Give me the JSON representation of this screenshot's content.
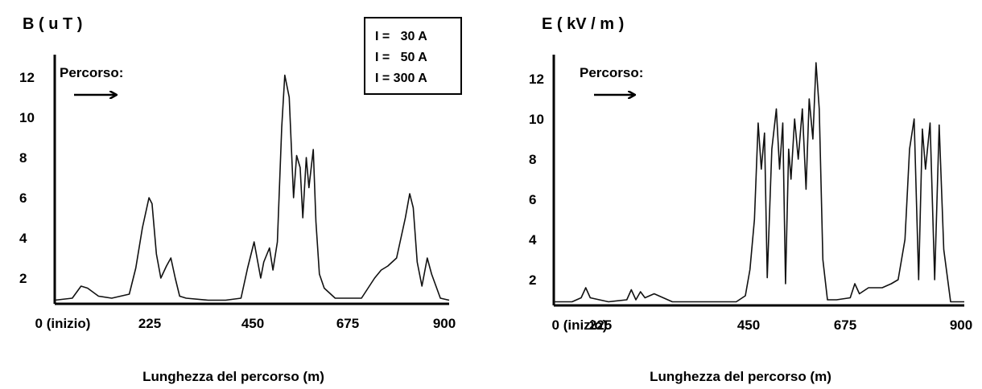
{
  "chart_data": [
    {
      "type": "line",
      "title": "B ( u T )",
      "xlabel": "Lunghezza del percorso (m)",
      "ylabel": "",
      "x_ticks": [
        "0 (inizio)",
        "225",
        "450",
        "675",
        "900"
      ],
      "y_ticks": [
        "2",
        "4",
        "6",
        "8",
        "10",
        "12"
      ],
      "xlim": [
        0,
        900
      ],
      "ylim": [
        0.8,
        12.5
      ],
      "annotation": "Percorso:",
      "legend": [
        "I =   30 A",
        "I =   50 A",
        "I = 300 A"
      ],
      "legend_position": "top-right",
      "grid": false,
      "series": [
        {
          "x": [
            0,
            40,
            60,
            75,
            100,
            130,
            170,
            185,
            200,
            215,
            222,
            232,
            242,
            255,
            265,
            275,
            285,
            300,
            350,
            390,
            425,
            440,
            455,
            470,
            477,
            490,
            498,
            508,
            518,
            525,
            535,
            545,
            552,
            560,
            566,
            574,
            580,
            590,
            596,
            604,
            615,
            640,
            670,
            700,
            730,
            745,
            760,
            780,
            800,
            810,
            818,
            827,
            838,
            850,
            860,
            880,
            900
          ],
          "y": [
            0.9,
            1.0,
            1.6,
            1.5,
            1.1,
            1.0,
            1.2,
            2.5,
            4.5,
            6.0,
            5.7,
            3.2,
            2.0,
            2.6,
            3.0,
            2.0,
            1.1,
            1.0,
            0.9,
            0.9,
            1.0,
            2.5,
            3.8,
            2.0,
            2.8,
            3.5,
            2.4,
            3.8,
            9.5,
            12.1,
            11.0,
            6.0,
            8.1,
            7.5,
            5.0,
            8.0,
            6.5,
            8.4,
            4.8,
            2.2,
            1.5,
            1.0,
            1.0,
            1.0,
            2.0,
            2.4,
            2.6,
            3.0,
            5.0,
            6.2,
            5.5,
            2.8,
            1.6,
            3.0,
            2.2,
            1.0,
            0.9
          ]
        }
      ]
    },
    {
      "type": "line",
      "title": "E ( kV / m )",
      "xlabel": "Lunghezza del percorso (m)",
      "ylabel": "",
      "x_ticks": [
        "0 (inizio)",
        "225",
        "450",
        "675",
        "900"
      ],
      "y_ticks": [
        "2",
        "4",
        "6",
        "8",
        "10",
        "12"
      ],
      "xlim": [
        0,
        900
      ],
      "ylim": [
        0.8,
        13
      ],
      "annotation": "Percorso:",
      "grid": false,
      "series": [
        {
          "x": [
            0,
            40,
            60,
            70,
            80,
            120,
            160,
            170,
            180,
            190,
            200,
            220,
            240,
            260,
            300,
            340,
            400,
            420,
            430,
            440,
            448,
            455,
            462,
            468,
            478,
            488,
            495,
            502,
            508,
            515,
            520,
            528,
            536,
            545,
            553,
            560,
            568,
            575,
            582,
            590,
            600,
            620,
            650,
            660,
            670,
            690,
            720,
            740,
            755,
            770,
            780,
            790,
            800,
            808,
            815,
            825,
            835,
            845,
            855,
            870,
            900
          ],
          "y": [
            0.9,
            0.9,
            1.1,
            1.6,
            1.1,
            0.9,
            1.0,
            1.5,
            1.0,
            1.4,
            1.1,
            1.3,
            1.1,
            0.9,
            0.9,
            0.9,
            0.9,
            1.2,
            2.5,
            5.0,
            9.8,
            7.5,
            9.3,
            2.1,
            8.5,
            10.5,
            7.5,
            9.8,
            1.8,
            8.5,
            7.0,
            10.0,
            8.0,
            10.5,
            6.5,
            11.0,
            9.0,
            12.8,
            10.5,
            3.0,
            1.0,
            1.0,
            1.1,
            1.8,
            1.3,
            1.6,
            1.6,
            1.8,
            2.0,
            4.0,
            8.5,
            10.0,
            2.0,
            9.5,
            7.5,
            9.8,
            2.0,
            9.7,
            3.5,
            0.9,
            0.9
          ]
        }
      ]
    }
  ]
}
